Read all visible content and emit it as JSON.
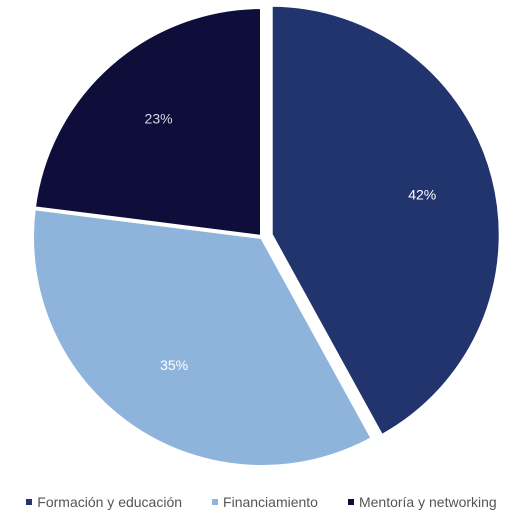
{
  "chart_data": {
    "type": "pie",
    "title": "",
    "slices": [
      {
        "name": "Formación y educación",
        "value": 42,
        "label": "42%",
        "color": "#22346e",
        "label_color": "#ffffff",
        "exploded": true
      },
      {
        "name": "Financiamiento",
        "value": 35,
        "label": "35%",
        "color": "#8eb4dc",
        "label_color": "#ffffff",
        "exploded": false
      },
      {
        "name": "Mentoría y networking",
        "value": 23,
        "label": "23%",
        "color": "#0f0e3a",
        "label_color": "#d7d7e6",
        "exploded": false
      }
    ],
    "start_angle": "12 o'clock",
    "direction": "clockwise",
    "legend_position": "bottom"
  },
  "legend": {
    "items": [
      {
        "label": "Formación y educación",
        "color": "#22346e"
      },
      {
        "label": "Financiamiento",
        "color": "#8eb4dc"
      },
      {
        "label": "Mentoría y networking",
        "color": "#0f0e3a"
      }
    ]
  }
}
